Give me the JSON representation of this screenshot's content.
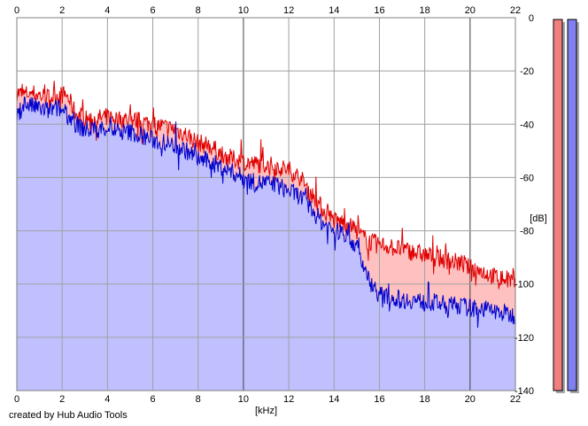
{
  "chart_data": {
    "type": "area",
    "xlabel": "[kHz]",
    "ylabel": "[dB]",
    "xlim": [
      0,
      22
    ],
    "ylim": [
      -140,
      0
    ],
    "x_ticks": [
      "0",
      "2",
      "4",
      "6",
      "8",
      "10",
      "12",
      "14",
      "16",
      "18",
      "20",
      "22"
    ],
    "y_ticks": [
      "0",
      "-20",
      "-40",
      "-60",
      "-80",
      "-100",
      "-120",
      "-140"
    ],
    "grid": true,
    "series": [
      {
        "color": "#e00000",
        "fill": "#ffc0c0",
        "x": [
          0,
          0.3,
          0.6,
          1.0,
          1.4,
          1.8,
          2.2,
          2.6,
          3.0,
          3.5,
          4.0,
          4.5,
          5.0,
          5.5,
          6.0,
          6.5,
          7.0,
          7.5,
          8.0,
          8.5,
          9.0,
          9.5,
          10.0,
          10.5,
          11.0,
          11.5,
          12.0,
          12.5,
          13.0,
          13.5,
          14.0,
          14.5,
          15.0,
          15.5,
          16.0,
          16.5,
          17.0,
          17.5,
          18.0,
          18.5,
          19.0,
          19.5,
          20.0,
          20.5,
          21.0,
          21.5,
          22.0
        ],
        "values": [
          -28,
          -29,
          -28,
          -29,
          -30,
          -29,
          -29,
          -36,
          -38,
          -38,
          -37,
          -38,
          -38,
          -39,
          -40,
          -41,
          -42,
          -44,
          -47,
          -48,
          -51,
          -53,
          -54,
          -55,
          -55,
          -56,
          -57,
          -60,
          -66,
          -72,
          -76,
          -77,
          -80,
          -84,
          -85,
          -86,
          -87,
          -88,
          -89,
          -90,
          -91,
          -92,
          -94,
          -95,
          -97,
          -98,
          -99
        ]
      },
      {
        "color": "#0000cc",
        "fill": "#c0c0ff",
        "x": [
          0,
          0.3,
          0.6,
          1.0,
          1.4,
          1.8,
          2.2,
          2.6,
          3.0,
          3.5,
          4.0,
          4.5,
          5.0,
          5.5,
          6.0,
          6.5,
          7.0,
          7.5,
          8.0,
          8.5,
          9.0,
          9.5,
          10.0,
          10.5,
          11.0,
          11.5,
          12.0,
          12.5,
          13.0,
          13.5,
          14.0,
          14.5,
          15.0,
          15.5,
          16.0,
          16.5,
          17.0,
          17.5,
          18.0,
          18.5,
          19.0,
          19.5,
          20.0,
          20.5,
          21.0,
          21.5,
          22.0
        ],
        "values": [
          -38,
          -32,
          -33,
          -34,
          -35,
          -34,
          -36,
          -40,
          -42,
          -42,
          -41,
          -43,
          -43,
          -44,
          -46,
          -47,
          -48,
          -50,
          -53,
          -54,
          -56,
          -58,
          -60,
          -62,
          -62,
          -63,
          -65,
          -67,
          -72,
          -77,
          -80,
          -81,
          -86,
          -98,
          -104,
          -105,
          -106,
          -106,
          -107,
          -107,
          -108,
          -108,
          -109,
          -109,
          -110,
          -111,
          -112
        ]
      }
    ]
  },
  "meters": [
    {
      "name": "left-channel-meter",
      "color": "#f08080",
      "level": 1.0
    },
    {
      "name": "right-channel-meter",
      "color": "#8080f0",
      "level": 1.0
    }
  ],
  "footer": {
    "credit": "created by Hub Audio Tools"
  }
}
